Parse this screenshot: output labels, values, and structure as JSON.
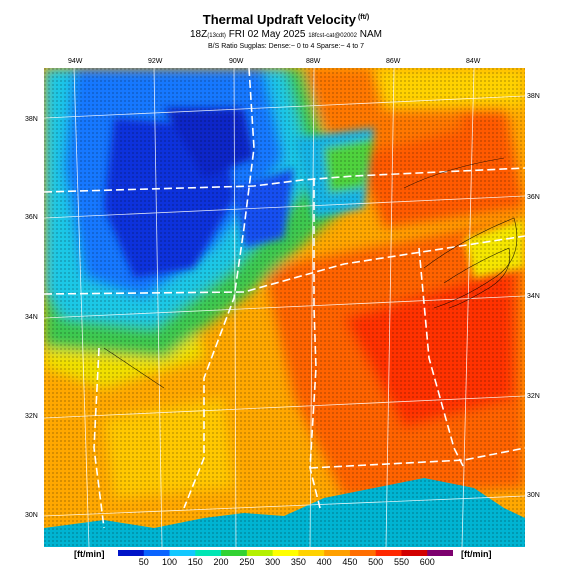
{
  "header": {
    "title": "Thermal Updraft Velocity",
    "title_unit": "(ft/)",
    "line2_main": "18Z",
    "line2_local": "(13cdt)",
    "line2_rest": " FRI 02 May 2025 ",
    "line2_small": "18fcst-cat@02002",
    "line2_tail": " NAM",
    "line3": "B/S Ratio Sugplas: Dense:~ 0 to 4  Sparse:~ 4 to 7"
  },
  "axes": {
    "lon_labels": [
      "94W",
      "92W",
      "90W",
      "88W",
      "86W",
      "84W"
    ],
    "lat_labels_left": [
      "38N",
      "36N",
      "34N",
      "32N",
      "30N"
    ],
    "lat_labels_right": [
      "38N",
      "36N",
      "34N",
      "32N",
      "30N"
    ]
  },
  "colorbar": {
    "unit_left": "[ft/min]",
    "unit_right": "[ft/min]",
    "tick_labels": [
      "50",
      "100",
      "150",
      "200",
      "250",
      "300",
      "350",
      "400",
      "450",
      "500",
      "550",
      "600"
    ],
    "colors": [
      "#0014c8",
      "#0a64ff",
      "#12c8ff",
      "#00e6b4",
      "#32d232",
      "#b4f000",
      "#ffff00",
      "#ffd200",
      "#ffa000",
      "#ff6e00",
      "#ff2800",
      "#d20000",
      "#7d006e"
    ]
  },
  "palette": {
    "sea": "#00b4d2",
    "low_blue": "#0a3ce6",
    "mid_blue": "#1478ff",
    "cyan": "#1ec8e6",
    "green": "#3cc850",
    "yellow_green": "#b4e61e",
    "yellow": "#f0f000",
    "orange": "#ffb400",
    "dark_orange": "#ff7800",
    "red": "#ff2800"
  }
}
